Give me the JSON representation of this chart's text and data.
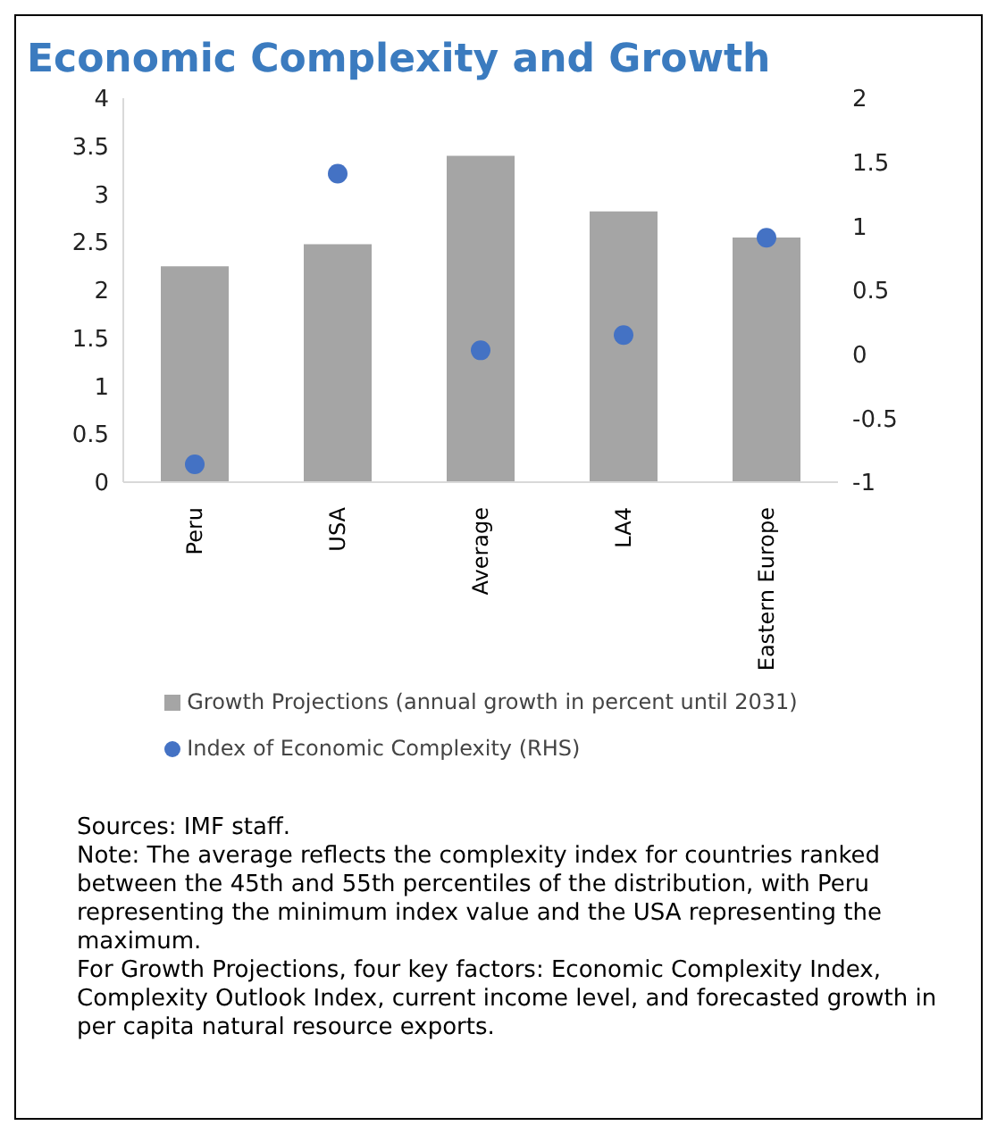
{
  "chart_data": {
    "type": "bar",
    "title": "Economic Complexity and Growth",
    "categories": [
      "Peru",
      "USA",
      "Average",
      "LA4",
      "Eastern Europe"
    ],
    "series": [
      {
        "name": "Growth Projections (annual growth in percent until 2031)",
        "color": "#a5a5a5",
        "values": [
          2.25,
          2.48,
          3.4,
          2.82,
          2.55
        ]
      },
      {
        "name": "Index of Economic Complexity (RHS)",
        "type": "scatter",
        "axis": "y2",
        "color": "#4472c4",
        "marker": "circle",
        "values": [
          -0.86,
          1.41,
          0.03,
          0.15,
          0.91
        ]
      }
    ],
    "ylim": [
      0,
      4
    ],
    "yticks": [
      0,
      0.5,
      1,
      1.5,
      2,
      2.5,
      3,
      3.5,
      4
    ],
    "y2lim": [
      -1,
      2
    ],
    "y2ticks": [
      -1,
      -0.5,
      0,
      0.5,
      1,
      1.5,
      2
    ],
    "grid": false,
    "legend": "bottom",
    "annotations": [
      "Sources: IMF staff.",
      "Note: The average reflects the complexity index for countries ranked between the 45th and 55th percentiles of the distribution, with Peru representing the minimum  index value and the USA representing the maximum.",
      "For Growth Projections, four key factors: Economic Complexity Index, Complexity Outlook Index, current income level, and forecasted growth in per capita natural resource exports."
    ]
  }
}
